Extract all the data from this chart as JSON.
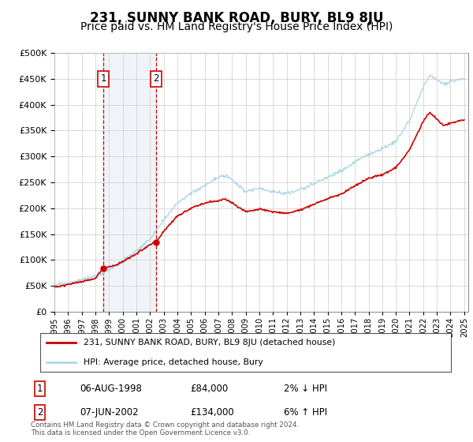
{
  "title": "231, SUNNY BANK ROAD, BURY, BL9 8JU",
  "subtitle": "Price paid vs. HM Land Registry's House Price Index (HPI)",
  "title_fontsize": 12,
  "subtitle_fontsize": 10,
  "background_color": "#ffffff",
  "grid_color": "#cccccc",
  "plot_bg": "#ffffff",
  "ylim": [
    0,
    500000
  ],
  "yticks": [
    0,
    50000,
    100000,
    150000,
    200000,
    250000,
    300000,
    350000,
    400000,
    450000,
    500000
  ],
  "hpi_color": "#add8e6",
  "price_color": "#cc0000",
  "sale1_date": "06-AUG-1998",
  "sale1_price": 84000,
  "sale1_year": 1998.59,
  "sale2_date": "07-JUN-2002",
  "sale2_price": 134000,
  "sale2_year": 2002.44,
  "legend_line1": "231, SUNNY BANK ROAD, BURY, BL9 8JU (detached house)",
  "legend_line2": "HPI: Average price, detached house, Bury",
  "footnote": "Contains HM Land Registry data © Crown copyright and database right 2024.\nThis data is licensed under the Open Government Licence v3.0.",
  "shaded_region": [
    1998.59,
    2002.44
  ],
  "hpi_points": [
    [
      1995.0,
      52000
    ],
    [
      1996.0,
      56000
    ],
    [
      1997.0,
      62000
    ],
    [
      1998.0,
      68000
    ],
    [
      1999.0,
      80000
    ],
    [
      2000.0,
      98000
    ],
    [
      2001.0,
      118000
    ],
    [
      2002.0,
      140000
    ],
    [
      2003.0,
      178000
    ],
    [
      2004.0,
      210000
    ],
    [
      2005.0,
      228000
    ],
    [
      2006.0,
      245000
    ],
    [
      2007.0,
      260000
    ],
    [
      2007.5,
      265000
    ],
    [
      2008.0,
      255000
    ],
    [
      2009.0,
      232000
    ],
    [
      2010.0,
      238000
    ],
    [
      2011.0,
      232000
    ],
    [
      2012.0,
      228000
    ],
    [
      2013.0,
      236000
    ],
    [
      2014.0,
      248000
    ],
    [
      2015.0,
      260000
    ],
    [
      2016.0,
      272000
    ],
    [
      2017.0,
      290000
    ],
    [
      2018.0,
      305000
    ],
    [
      2019.0,
      315000
    ],
    [
      2020.0,
      330000
    ],
    [
      2021.0,
      370000
    ],
    [
      2022.0,
      435000
    ],
    [
      2022.5,
      458000
    ],
    [
      2023.0,
      448000
    ],
    [
      2023.5,
      440000
    ],
    [
      2024.0,
      445000
    ],
    [
      2024.5,
      448000
    ],
    [
      2025.0,
      450000
    ]
  ],
  "red_points": [
    [
      1995.0,
      48000
    ],
    [
      1996.0,
      52000
    ],
    [
      1997.0,
      58000
    ],
    [
      1998.0,
      64000
    ],
    [
      1998.59,
      84000
    ],
    [
      1999.5,
      90000
    ],
    [
      2000.0,
      96000
    ],
    [
      2001.0,
      112000
    ],
    [
      2002.0,
      130000
    ],
    [
      2002.44,
      134000
    ],
    [
      2003.0,
      155000
    ],
    [
      2004.0,
      185000
    ],
    [
      2005.0,
      200000
    ],
    [
      2006.0,
      210000
    ],
    [
      2007.0,
      215000
    ],
    [
      2007.5,
      218000
    ],
    [
      2008.0,
      210000
    ],
    [
      2009.0,
      193000
    ],
    [
      2010.0,
      198000
    ],
    [
      2011.0,
      193000
    ],
    [
      2012.0,
      190000
    ],
    [
      2013.0,
      196000
    ],
    [
      2014.0,
      208000
    ],
    [
      2015.0,
      218000
    ],
    [
      2016.0,
      228000
    ],
    [
      2017.0,
      243000
    ],
    [
      2018.0,
      258000
    ],
    [
      2019.0,
      265000
    ],
    [
      2020.0,
      278000
    ],
    [
      2021.0,
      313000
    ],
    [
      2022.0,
      368000
    ],
    [
      2022.5,
      385000
    ],
    [
      2023.0,
      372000
    ],
    [
      2023.5,
      360000
    ],
    [
      2024.0,
      365000
    ],
    [
      2024.5,
      368000
    ],
    [
      2025.0,
      370000
    ]
  ]
}
